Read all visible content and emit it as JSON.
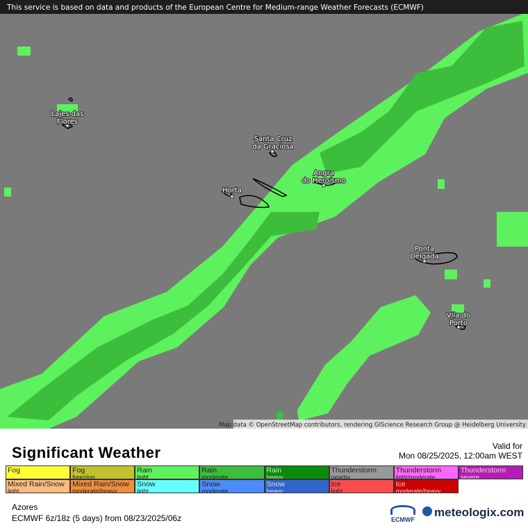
{
  "notice": "This service is based on data and products of the European Centre for Medium-range Weather Forecasts (ECMWF)",
  "places": [
    {
      "lines": [
        "Lajes das",
        "Flores"
      ]
    },
    {
      "lines": [
        "Santa Cruz",
        "da Graciosa"
      ]
    },
    {
      "lines": [
        "Angra",
        "do Heroísmo"
      ]
    },
    {
      "lines": [
        "Horta"
      ]
    },
    {
      "lines": [
        "Ponta",
        "Delgada"
      ]
    },
    {
      "lines": [
        "Vila do",
        "Porto"
      ]
    }
  ],
  "attribution": "Map data © OpenStreetMap contributors, rendering GIScience Research Group @ Heidelberg University",
  "title": "Significant Weather",
  "valid_label": "Valid for",
  "valid_time": "Mon 08/25/2025, 12:00am WEST",
  "legend": [
    [
      {
        "name": "Fog",
        "color": "#ffff33"
      },
      {
        "name": "Fog",
        "detail": "freezing",
        "color": "#c2c22e"
      },
      {
        "name": "Rain",
        "detail": "light",
        "color": "#5df25d"
      },
      {
        "name": "Rain",
        "detail": "moderate",
        "color": "#3cbe3c"
      },
      {
        "name": "Rain",
        "detail": "heavy",
        "color": "#0a8c0a"
      },
      {
        "name": "Thunderstorm",
        "detail": "nearby",
        "color": "#999999"
      },
      {
        "name": "Thunderstorm",
        "detail": "light/moderate",
        "color": "#ff66ff"
      },
      {
        "name": "Thunderstorm",
        "detail": "severe",
        "color": "#b41eb4"
      }
    ],
    [
      {
        "name": "Mixed Rain/Snow",
        "detail": "light",
        "color": "#ffbb80"
      },
      {
        "name": "Mixed Rain/Snow",
        "detail": "moderate/heavy",
        "color": "#f08c3c"
      },
      {
        "name": "Snow",
        "detail": "light",
        "color": "#66ffff"
      },
      {
        "name": "Snow",
        "detail": "moderate",
        "color": "#4d8cff"
      },
      {
        "name": "Snow",
        "detail": "heavy",
        "color": "#3366cc"
      },
      {
        "name": "Ice",
        "detail": "light",
        "color": "#ff4d4d"
      },
      {
        "name": "Ice",
        "detail": "moderate/heavy",
        "color": "#cc0000"
      }
    ]
  ],
  "region": "Azores",
  "model": "ECMWF 6z/18z (5 days) from  08/23/2025/06z",
  "ecmwf_logo": "ECMWF",
  "brand": "meteologix.com"
}
